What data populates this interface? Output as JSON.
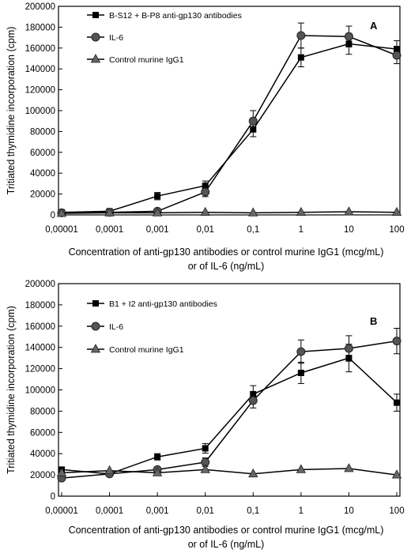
{
  "chart_data": [
    {
      "type": "line",
      "panel_label": "A",
      "ylabel": "Tritiated thymidine incorporation (cpm)",
      "xlabel": [
        "Concentration of anti-gp130 antibodies or control murine IgG1 (mcg/mL)",
        "or of IL-6 (ng/mL)"
      ],
      "x_scale": "log",
      "x": [
        1e-05,
        0.0001,
        0.001,
        0.01,
        0.1,
        1,
        10,
        100
      ],
      "x_tick_labels": [
        "0,00001",
        "0,0001",
        "0,001",
        "0,01",
        "0,1",
        "1",
        "10",
        "100"
      ],
      "ylim": [
        0,
        200000
      ],
      "y_ticks": [
        0,
        20000,
        40000,
        60000,
        80000,
        100000,
        120000,
        140000,
        160000,
        180000,
        200000
      ],
      "y_tick_labels": [
        "0",
        "20000",
        "40000",
        "60000",
        "80000",
        "100000",
        "120000",
        "140000",
        "160000",
        "180000",
        "200000"
      ],
      "grid": false,
      "legend_position": "top-left",
      "series": [
        {
          "name": "B-S12 + B-P8 anti-gp130 antibodies",
          "marker": "square",
          "values": [
            2500,
            3500,
            18000,
            28000,
            82000,
            151000,
            164000,
            159000
          ],
          "errors": [
            1000,
            1200,
            3500,
            4500,
            7000,
            9000,
            10000,
            8000
          ]
        },
        {
          "name": "IL-6",
          "marker": "circle",
          "values": [
            2000,
            2500,
            3500,
            22000,
            90000,
            172000,
            171000,
            153000
          ],
          "errors": [
            800,
            1000,
            1200,
            4500,
            10000,
            12000,
            10000,
            8000
          ]
        },
        {
          "name": "Control murine IgG1",
          "marker": "triangle",
          "values": [
            1500,
            2000,
            2000,
            2500,
            2000,
            2500,
            3000,
            2500
          ],
          "errors": [
            0,
            0,
            0,
            0,
            0,
            0,
            0,
            0
          ]
        }
      ]
    },
    {
      "type": "line",
      "panel_label": "B",
      "ylabel": "Tritiated thymidine incorporation (cpm)",
      "xlabel": [
        "Concentration of anti-gp130 antibodies or control murine IgG1 (mcg/mL)",
        "or of IL-6 (ng/mL)"
      ],
      "x_scale": "log",
      "x": [
        1e-05,
        0.0001,
        0.001,
        0.01,
        0.1,
        1,
        10,
        100
      ],
      "x_tick_labels": [
        "0,00001",
        "0,0001",
        "0,001",
        "0,01",
        "0,1",
        "1",
        "10",
        "100"
      ],
      "ylim": [
        0,
        200000
      ],
      "y_ticks": [
        0,
        20000,
        40000,
        60000,
        80000,
        100000,
        120000,
        140000,
        160000,
        180000,
        200000
      ],
      "y_tick_labels": [
        "0",
        "20000",
        "40000",
        "60000",
        "80000",
        "100000",
        "120000",
        "140000",
        "160000",
        "180000",
        "200000"
      ],
      "grid": false,
      "legend_position": "top-left",
      "series": [
        {
          "name": "B1 + I2 anti-gp130 antibodies",
          "marker": "square",
          "values": [
            25000,
            21000,
            37000,
            45000,
            96000,
            116000,
            130000,
            88000
          ],
          "errors": [
            1500,
            1500,
            3000,
            4500,
            8000,
            10000,
            13000,
            8000
          ]
        },
        {
          "name": "IL-6",
          "marker": "circle",
          "values": [
            17000,
            21000,
            25000,
            32000,
            90000,
            136000,
            139000,
            146000
          ],
          "errors": [
            1500,
            1500,
            2500,
            4000,
            7000,
            11000,
            12000,
            12000
          ]
        },
        {
          "name": "Control murine IgG1",
          "marker": "triangle",
          "values": [
            22000,
            24000,
            22000,
            25000,
            21000,
            25000,
            26000,
            20000
          ],
          "errors": [
            0,
            0,
            0,
            0,
            0,
            0,
            0,
            0
          ]
        }
      ]
    }
  ]
}
